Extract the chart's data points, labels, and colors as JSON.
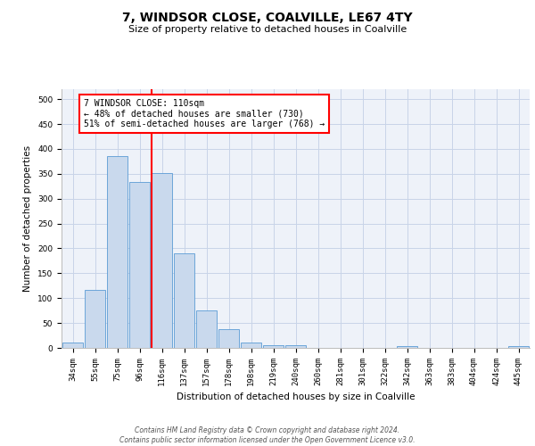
{
  "title": "7, WINDSOR CLOSE, COALVILLE, LE67 4TY",
  "subtitle": "Size of property relative to detached houses in Coalville",
  "xlabel": "Distribution of detached houses by size in Coalville",
  "ylabel": "Number of detached properties",
  "bar_labels": [
    "34sqm",
    "55sqm",
    "75sqm",
    "96sqm",
    "116sqm",
    "137sqm",
    "157sqm",
    "178sqm",
    "198sqm",
    "219sqm",
    "240sqm",
    "260sqm",
    "281sqm",
    "301sqm",
    "322sqm",
    "342sqm",
    "363sqm",
    "383sqm",
    "404sqm",
    "424sqm",
    "445sqm"
  ],
  "bar_values": [
    10,
    117,
    385,
    333,
    352,
    190,
    76,
    38,
    10,
    6,
    5,
    0,
    0,
    0,
    0,
    4,
    0,
    0,
    0,
    0,
    4
  ],
  "bar_color": "#c9d9ed",
  "bar_edge_color": "#5b9bd5",
  "vline_index": 4,
  "vline_color": "red",
  "annotation_text": "7 WINDSOR CLOSE: 110sqm\n← 48% of detached houses are smaller (730)\n51% of semi-detached houses are larger (768) →",
  "annotation_box_color": "white",
  "annotation_box_edge": "red",
  "ylim": [
    0,
    520
  ],
  "yticks": [
    0,
    50,
    100,
    150,
    200,
    250,
    300,
    350,
    400,
    450,
    500
  ],
  "grid_color": "#c8d4e8",
  "bg_color": "#eef2f9",
  "footer": "Contains HM Land Registry data © Crown copyright and database right 2024.\nContains public sector information licensed under the Open Government Licence v3.0.",
  "title_fontsize": 10,
  "subtitle_fontsize": 8,
  "ylabel_fontsize": 7.5,
  "xlabel_fontsize": 7.5,
  "tick_fontsize": 6.5,
  "footer_fontsize": 5.5,
  "annot_fontsize": 7.0
}
